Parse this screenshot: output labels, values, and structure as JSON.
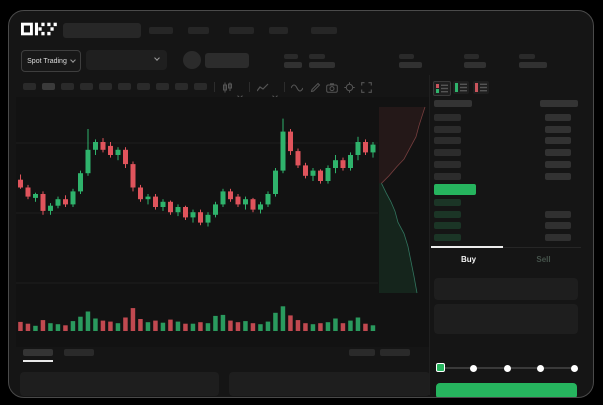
{
  "app": {
    "title": "OKX Spot Trading"
  },
  "header": {
    "logo": "OKX",
    "nav_count": 5,
    "market_selector": {
      "label": "Spot Trading"
    },
    "stats_count": 5
  },
  "toolbar": {
    "timeframe_count": 10,
    "active_timeframe_index": 1,
    "icons": [
      "candle-style-icon",
      "chevron-down-icon",
      "indicators-icon",
      "chevron-down-icon",
      "line-tool-icon",
      "draw-icon",
      "camera-icon",
      "settings-icon",
      "fullscreen-icon"
    ]
  },
  "chart_data": {
    "type": "candlestick",
    "title": "",
    "xlabel": "",
    "ylabel": "",
    "grid": true,
    "gridline_count": 3,
    "price_units_range": [
      0,
      100
    ],
    "candles_ohlc": [
      [
        51,
        55,
        44,
        45
      ],
      [
        45,
        47,
        36,
        38
      ],
      [
        37,
        41,
        34,
        40
      ],
      [
        40,
        42,
        24,
        27
      ],
      [
        27,
        33,
        24,
        31
      ],
      [
        31,
        38,
        29,
        36
      ],
      [
        36,
        39,
        30,
        32
      ],
      [
        32,
        44,
        30,
        42
      ],
      [
        42,
        58,
        40,
        56
      ],
      [
        56,
        90,
        54,
        74
      ],
      [
        74,
        82,
        70,
        80
      ],
      [
        80,
        83,
        72,
        74
      ],
      [
        77,
        80,
        68,
        70
      ],
      [
        70,
        76,
        66,
        74
      ],
      [
        74,
        76,
        60,
        63
      ],
      [
        63,
        65,
        42,
        45
      ],
      [
        45,
        47,
        34,
        36
      ],
      [
        36,
        40,
        32,
        38
      ],
      [
        38,
        40,
        28,
        30
      ],
      [
        30,
        36,
        27,
        34
      ],
      [
        34,
        35,
        24,
        26
      ],
      [
        26,
        32,
        23,
        30
      ],
      [
        30,
        31,
        20,
        22
      ],
      [
        22,
        28,
        18,
        26
      ],
      [
        26,
        28,
        16,
        18
      ],
      [
        18,
        26,
        15,
        24
      ],
      [
        24,
        34,
        22,
        32
      ],
      [
        32,
        44,
        30,
        42
      ],
      [
        42,
        44,
        34,
        36
      ],
      [
        38,
        40,
        30,
        32
      ],
      [
        32,
        38,
        28,
        36
      ],
      [
        36,
        37,
        26,
        28
      ],
      [
        28,
        34,
        25,
        32
      ],
      [
        32,
        42,
        30,
        40
      ],
      [
        40,
        60,
        38,
        58
      ],
      [
        58,
        98,
        56,
        88
      ],
      [
        88,
        90,
        70,
        73
      ],
      [
        73,
        75,
        60,
        62
      ],
      [
        62,
        64,
        52,
        54
      ],
      [
        54,
        60,
        50,
        58
      ],
      [
        58,
        59,
        48,
        50
      ],
      [
        50,
        62,
        48,
        60
      ],
      [
        60,
        70,
        56,
        66
      ],
      [
        66,
        68,
        58,
        60
      ],
      [
        60,
        72,
        58,
        70
      ],
      [
        70,
        84,
        66,
        80
      ],
      [
        80,
        82,
        70,
        72
      ],
      [
        72,
        80,
        68,
        78
      ]
    ],
    "volumes": [
      35,
      28,
      20,
      42,
      30,
      26,
      22,
      38,
      55,
      75,
      48,
      40,
      36,
      30,
      52,
      88,
      46,
      34,
      40,
      32,
      44,
      36,
      28,
      28,
      34,
      30,
      58,
      62,
      40,
      34,
      38,
      30,
      26,
      36,
      70,
      95,
      60,
      42,
      30,
      26,
      30,
      34,
      48,
      30,
      40,
      52,
      28,
      22
    ],
    "depth_overlay": {
      "mid_frac": 0.41,
      "asks_line": [
        [
          0.92,
          0
        ],
        [
          0.86,
          0.05
        ],
        [
          0.8,
          0.1
        ],
        [
          0.74,
          0.16
        ],
        [
          0.62,
          0.22
        ],
        [
          0.5,
          0.28
        ],
        [
          0.36,
          0.32
        ],
        [
          0.2,
          0.37
        ],
        [
          0.05,
          0.41
        ]
      ],
      "bids_line": [
        [
          0.05,
          0.41
        ],
        [
          0.14,
          0.46
        ],
        [
          0.24,
          0.51
        ],
        [
          0.32,
          0.56
        ],
        [
          0.38,
          0.62
        ],
        [
          0.5,
          0.68
        ],
        [
          0.58,
          0.75
        ],
        [
          0.64,
          0.83
        ],
        [
          0.7,
          0.91
        ],
        [
          0.76,
          1.0
        ]
      ]
    }
  },
  "orderbook": {
    "view_mode_icons": [
      "book-combined-icon",
      "book-bids-icon",
      "book-asks-icon"
    ],
    "ask_rows": [
      [
        1,
        1
      ],
      [
        1,
        1
      ],
      [
        1,
        1
      ],
      [
        1,
        1
      ],
      [
        1,
        1
      ],
      [
        1,
        1
      ]
    ],
    "price_row": {
      "color": "#26b45e"
    },
    "bid_rows": [
      [
        1,
        0
      ],
      [
        1,
        1
      ],
      [
        1,
        1
      ],
      [
        1,
        1
      ]
    ]
  },
  "trade_panel": {
    "buy_label": "Buy",
    "sell_label": "Sell",
    "active_tab": "Buy",
    "slider_stops": 5,
    "submit_button": {
      "label": "",
      "color": "#26b45e"
    }
  },
  "bottom_bar": {
    "tab_count": 2,
    "active_tab_index": 0,
    "right_item_count": 2,
    "panel_count": 2
  },
  "colors": {
    "up": "#2fb36c",
    "down": "#e0545c",
    "accent_green": "#26b45e",
    "window_bg": "#151515",
    "placeholder": "#2a2a2a"
  }
}
